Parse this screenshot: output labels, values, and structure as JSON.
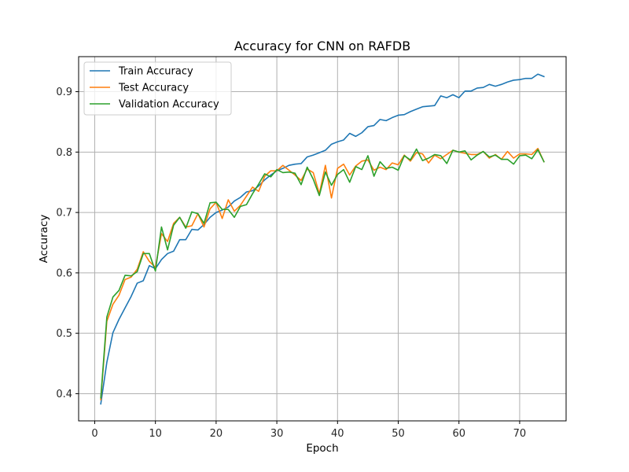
{
  "chart_data": {
    "type": "line",
    "title": "Accuracy for CNN on RAFDB",
    "xlabel": "Epoch",
    "ylabel": "Accuracy",
    "xlim": [
      -2.65,
      77.65
    ],
    "ylim": [
      0.355,
      0.958
    ],
    "xticks": [
      0,
      10,
      20,
      30,
      40,
      50,
      60,
      70
    ],
    "yticks": [
      0.4,
      0.5,
      0.6,
      0.7,
      0.8,
      0.9
    ],
    "ytick_labels": [
      "0.4",
      "0.5",
      "0.6",
      "0.7",
      "0.8",
      "0.9"
    ],
    "grid": true,
    "legend_position": "top-left",
    "x": [
      1,
      2,
      3,
      4,
      5,
      6,
      7,
      8,
      9,
      10,
      11,
      12,
      13,
      14,
      15,
      16,
      17,
      18,
      19,
      20,
      21,
      22,
      23,
      24,
      25,
      26,
      27,
      28,
      29,
      30,
      31,
      32,
      33,
      34,
      35,
      36,
      37,
      38,
      39,
      40,
      41,
      42,
      43,
      44,
      45,
      46,
      47,
      48,
      49,
      50,
      51,
      52,
      53,
      54,
      55,
      56,
      57,
      58,
      59,
      60,
      61,
      62,
      63,
      64,
      65,
      66,
      67,
      68,
      69,
      70,
      71,
      72,
      73,
      74
    ],
    "series": [
      {
        "name": "Train Accuracy",
        "color": "#1f77b4",
        "values": [
          0.383,
          0.452,
          0.501,
          0.523,
          0.542,
          0.561,
          0.583,
          0.587,
          0.612,
          0.607,
          0.622,
          0.632,
          0.636,
          0.655,
          0.655,
          0.672,
          0.671,
          0.68,
          0.692,
          0.7,
          0.704,
          0.709,
          0.719,
          0.725,
          0.734,
          0.736,
          0.744,
          0.754,
          0.762,
          0.769,
          0.773,
          0.778,
          0.78,
          0.781,
          0.792,
          0.795,
          0.799,
          0.803,
          0.813,
          0.817,
          0.82,
          0.831,
          0.826,
          0.832,
          0.842,
          0.844,
          0.854,
          0.852,
          0.857,
          0.861,
          0.862,
          0.867,
          0.871,
          0.875,
          0.876,
          0.877,
          0.893,
          0.89,
          0.895,
          0.89,
          0.901,
          0.901,
          0.906,
          0.907,
          0.912,
          0.909,
          0.912,
          0.916,
          0.919,
          0.92,
          0.922,
          0.922,
          0.929,
          0.925
        ]
      },
      {
        "name": "Test Accuracy",
        "color": "#ff7f0e",
        "values": [
          0.39,
          0.52,
          0.548,
          0.563,
          0.589,
          0.593,
          0.606,
          0.635,
          0.619,
          0.609,
          0.665,
          0.652,
          0.682,
          0.692,
          0.676,
          0.678,
          0.698,
          0.676,
          0.706,
          0.717,
          0.69,
          0.721,
          0.702,
          0.712,
          0.727,
          0.742,
          0.735,
          0.76,
          0.769,
          0.769,
          0.778,
          0.77,
          0.762,
          0.753,
          0.772,
          0.766,
          0.731,
          0.778,
          0.724,
          0.773,
          0.78,
          0.762,
          0.777,
          0.785,
          0.787,
          0.77,
          0.775,
          0.771,
          0.782,
          0.779,
          0.795,
          0.785,
          0.799,
          0.797,
          0.782,
          0.795,
          0.789,
          0.796,
          0.803,
          0.8,
          0.798,
          0.796,
          0.796,
          0.801,
          0.79,
          0.796,
          0.788,
          0.801,
          0.79,
          0.797,
          0.797,
          0.796,
          0.806,
          0.784
        ]
      },
      {
        "name": "Validation Accuracy",
        "color": "#2ca02c",
        "values": [
          0.393,
          0.527,
          0.56,
          0.571,
          0.596,
          0.595,
          0.602,
          0.632,
          0.632,
          0.603,
          0.676,
          0.638,
          0.679,
          0.692,
          0.674,
          0.701,
          0.698,
          0.682,
          0.716,
          0.717,
          0.705,
          0.705,
          0.692,
          0.71,
          0.713,
          0.731,
          0.747,
          0.764,
          0.759,
          0.771,
          0.766,
          0.767,
          0.765,
          0.746,
          0.775,
          0.755,
          0.728,
          0.767,
          0.745,
          0.763,
          0.771,
          0.75,
          0.776,
          0.771,
          0.794,
          0.76,
          0.784,
          0.773,
          0.775,
          0.77,
          0.794,
          0.787,
          0.805,
          0.786,
          0.79,
          0.796,
          0.794,
          0.781,
          0.803,
          0.8,
          0.802,
          0.787,
          0.795,
          0.801,
          0.792,
          0.795,
          0.788,
          0.788,
          0.78,
          0.794,
          0.795,
          0.789,
          0.804,
          0.784
        ]
      }
    ]
  }
}
